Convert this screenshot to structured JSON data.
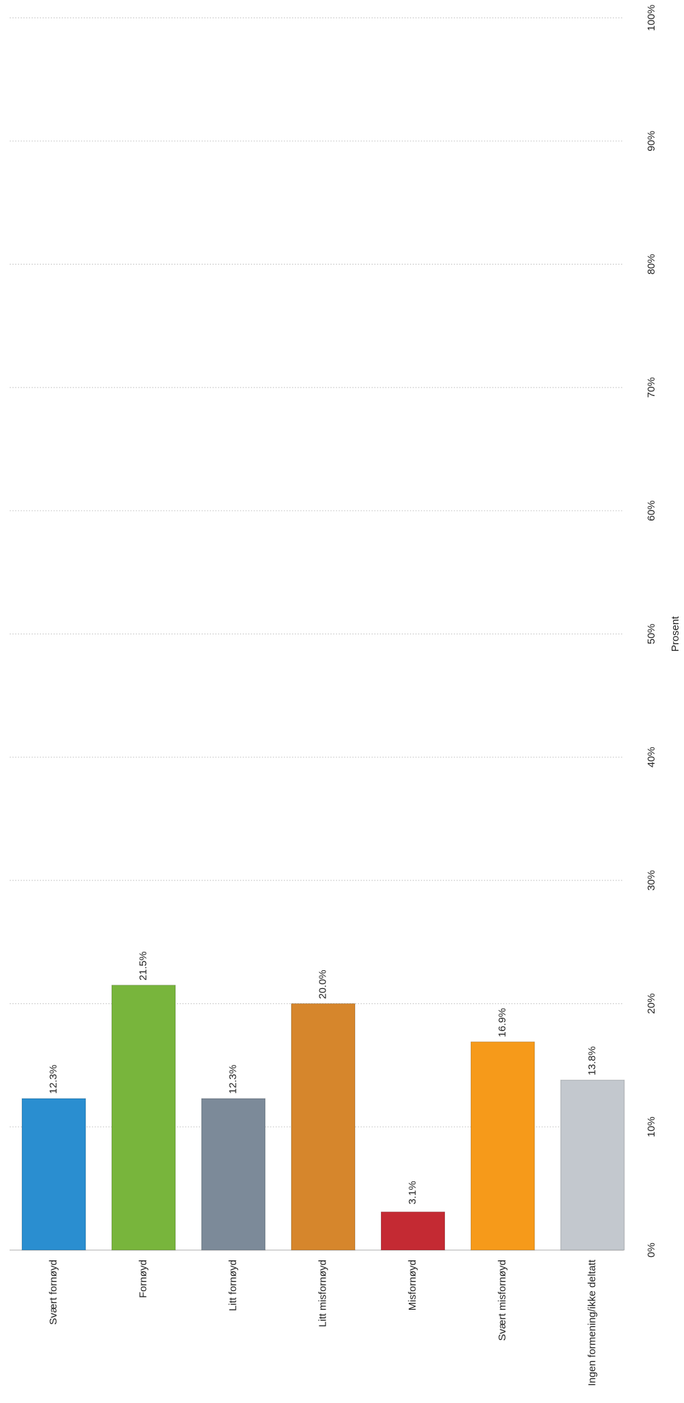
{
  "chart_data": {
    "type": "bar",
    "orientation": "rotated-90",
    "categories": [
      "Svært fornøyd",
      "Fornøyd",
      "Litt fornøyd",
      "Litt misfornøyd",
      "Misfornøyd",
      "Svært misfornøyd",
      "Ingen formening/ikke deltatt"
    ],
    "values": [
      12.3,
      21.5,
      12.3,
      20.0,
      3.1,
      16.9,
      13.8
    ],
    "value_labels": [
      "12.3%",
      "21.5%",
      "12.3%",
      "20.0%",
      "3.1%",
      "16.9%",
      "13.8%"
    ],
    "colors": [
      "#2a8ed0",
      "#78b53c",
      "#7c8a99",
      "#d6862c",
      "#c42a33",
      "#f69a1a",
      "#c3c8ce"
    ],
    "ylabel": "Prosent",
    "ylim": [
      0,
      100
    ],
    "ticks": [
      0,
      10,
      20,
      30,
      40,
      50,
      60,
      70,
      80,
      90,
      100
    ],
    "tick_labels": [
      "0%",
      "10%",
      "20%",
      "30%",
      "40%",
      "50%",
      "60%",
      "70%",
      "80%",
      "90%",
      "100%"
    ],
    "grid": true,
    "legend": "none"
  }
}
